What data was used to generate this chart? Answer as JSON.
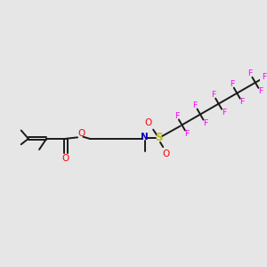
{
  "background_color": "#e6e6e6",
  "figsize": [
    3.0,
    3.0
  ],
  "dpi": 100,
  "bond_color": "#1a1a1a",
  "bond_lw": 1.4,
  "O_color": "#ff0000",
  "N_color": "#0000bb",
  "S_color": "#bbbb00",
  "F_color": "#ff00ff",
  "label_fontsize": 7.5,
  "small_fontsize": 6.8,
  "xlim": [
    0,
    10
  ],
  "ylim": [
    2,
    8
  ]
}
